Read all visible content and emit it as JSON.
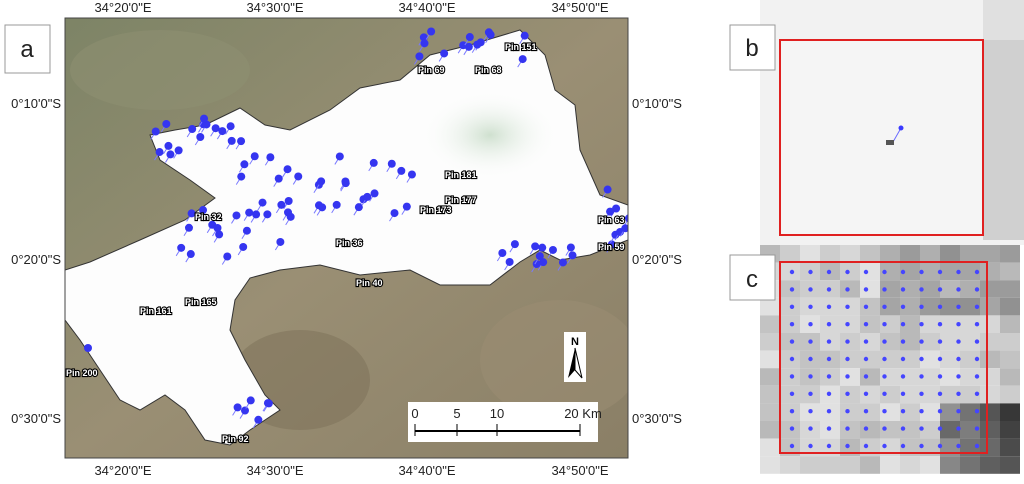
{
  "panels": {
    "a": {
      "label": "a",
      "top_ticks": [
        "34°20'0\"E",
        "34°30'0\"E",
        "34°40'0\"E",
        "34°50'0\"E"
      ],
      "bottom_ticks": [
        "34°20'0\"E",
        "34°30'0\"E",
        "34°40'0\"E",
        "34°50'0\"E"
      ],
      "left_ticks": [
        "0°10'0\"S",
        "0°20'0\"S",
        "0°30'0\"S"
      ],
      "right_ticks": [
        "0°10'0\"S",
        "0°20'0\"S",
        "0°30'0\"S"
      ],
      "scale_bar": {
        "labels": [
          "0",
          "5",
          "10",
          "20 Km"
        ]
      },
      "north": "N",
      "pins": [
        "Pin 69",
        "Pin 68",
        "Pin 151",
        "Pin 181",
        "Pin 177",
        "Pin 173",
        "Pin 32",
        "Pin 36",
        "Pin 40",
        "Pin 165",
        "Pin 161",
        "Pin 200",
        "Pin 92",
        "Pin 63",
        "Pin 59"
      ]
    },
    "b": {
      "label": "b"
    },
    "c": {
      "label": "c"
    }
  }
}
